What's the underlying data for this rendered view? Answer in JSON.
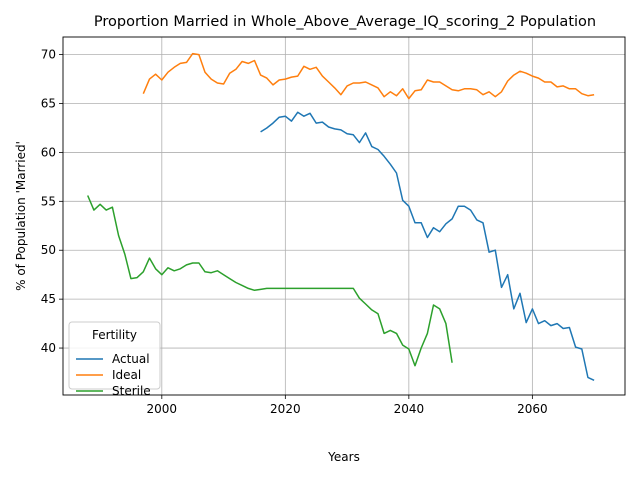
{
  "chart_data": {
    "type": "line",
    "title": "Proportion Married in Whole_Above_Average_IQ_scoring_2 Population",
    "xlabel": "Years",
    "ylabel": "% of Population 'Married'",
    "xlim": [
      1984,
      2075
    ],
    "ylim": [
      35.2,
      71.8
    ],
    "xticks": [
      2000,
      2020,
      2040,
      2060
    ],
    "yticks": [
      40,
      45,
      50,
      55,
      60,
      65,
      70
    ],
    "grid": true,
    "legend": {
      "title": "Fertility",
      "position": "lower-left"
    },
    "series": [
      {
        "name": "Actual",
        "color": "#1f77b4",
        "x": [
          2016,
          2017,
          2018,
          2019,
          2020,
          2021,
          2022,
          2023,
          2024,
          2025,
          2026,
          2027,
          2028,
          2029,
          2030,
          2031,
          2032,
          2033,
          2034,
          2035,
          2036,
          2037,
          2038,
          2039,
          2040,
          2041,
          2042,
          2043,
          2044,
          2045,
          2046,
          2047,
          2048,
          2049,
          2050,
          2051,
          2052,
          2053,
          2054,
          2055,
          2056,
          2057,
          2058,
          2059,
          2060,
          2061,
          2062,
          2063,
          2064,
          2065,
          2066,
          2067,
          2068,
          2069,
          2070
        ],
        "y": [
          62.1,
          62.5,
          63.0,
          63.6,
          63.7,
          63.2,
          64.1,
          63.7,
          64.0,
          63.0,
          63.1,
          62.6,
          62.4,
          62.3,
          61.9,
          61.8,
          61.0,
          62.0,
          60.6,
          60.3,
          59.6,
          58.8,
          57.9,
          55.1,
          54.5,
          52.8,
          52.8,
          51.3,
          52.3,
          51.9,
          52.7,
          53.2,
          54.5,
          54.5,
          54.1,
          53.1,
          52.8,
          49.8,
          50.0,
          46.2,
          47.5,
          44.0,
          45.6,
          42.6,
          44.0,
          42.5,
          42.8,
          42.3,
          42.5,
          42.0,
          42.1,
          40.1,
          39.9,
          37.0,
          36.7
        ]
      },
      {
        "name": "Ideal",
        "color": "#ff7f0e",
        "x": [
          1997,
          1998,
          1999,
          2000,
          2001,
          2002,
          2003,
          2004,
          2005,
          2006,
          2007,
          2008,
          2009,
          2010,
          2011,
          2012,
          2013,
          2014,
          2015,
          2016,
          2017,
          2018,
          2019,
          2020,
          2021,
          2022,
          2023,
          2024,
          2025,
          2026,
          2027,
          2028,
          2029,
          2030,
          2031,
          2032,
          2033,
          2034,
          2035,
          2036,
          2037,
          2038,
          2039,
          2040,
          2041,
          2042,
          2043,
          2044,
          2045,
          2046,
          2047,
          2048,
          2049,
          2050,
          2051,
          2052,
          2053,
          2054,
          2055,
          2056,
          2057,
          2058,
          2059,
          2060,
          2061,
          2062,
          2063,
          2064,
          2065,
          2066,
          2067,
          2068,
          2069,
          2070
        ],
        "y": [
          66.0,
          67.5,
          68.0,
          67.4,
          68.2,
          68.7,
          69.1,
          69.2,
          70.1,
          70.0,
          68.2,
          67.5,
          67.1,
          67.0,
          68.1,
          68.5,
          69.3,
          69.1,
          69.4,
          67.9,
          67.6,
          66.9,
          67.4,
          67.5,
          67.7,
          67.8,
          68.8,
          68.5,
          68.7,
          67.8,
          67.2,
          66.6,
          65.9,
          66.8,
          67.1,
          67.1,
          67.2,
          66.9,
          66.6,
          65.7,
          66.2,
          65.8,
          66.5,
          65.5,
          66.3,
          66.4,
          67.4,
          67.2,
          67.2,
          66.8,
          66.4,
          66.3,
          66.5,
          66.5,
          66.4,
          65.9,
          66.2,
          65.7,
          66.2,
          67.3,
          67.9,
          68.3,
          68.1,
          67.8,
          67.6,
          67.2,
          67.2,
          66.7,
          66.8,
          66.5,
          66.5,
          66.0,
          65.8,
          65.9
        ]
      },
      {
        "name": "Sterile",
        "color": "#2ca02c",
        "x": [
          1988,
          1989,
          1990,
          1991,
          1992,
          1993,
          1994,
          1995,
          1996,
          1997,
          1998,
          1999,
          2000,
          2001,
          2002,
          2003,
          2004,
          2005,
          2006,
          2007,
          2008,
          2009,
          2010,
          2011,
          2012,
          2013,
          2014,
          2015,
          2016,
          2017,
          2018,
          2019,
          2020,
          2021,
          2022,
          2023,
          2024,
          2025,
          2026,
          2027,
          2028,
          2029,
          2030,
          2031,
          2032,
          2033,
          2034,
          2035,
          2036,
          2037,
          2038,
          2039,
          2040,
          2041,
          2042,
          2043,
          2044,
          2045,
          2046,
          2047
        ],
        "y": [
          55.6,
          54.1,
          54.7,
          54.1,
          54.4,
          51.5,
          49.6,
          47.1,
          47.2,
          47.8,
          49.2,
          48.1,
          47.5,
          48.2,
          47.9,
          48.1,
          48.5,
          48.7,
          48.7,
          47.8,
          47.7,
          47.9,
          47.5,
          47.1,
          46.7,
          46.4,
          46.1,
          45.9,
          46.0,
          46.1,
          46.1,
          46.1,
          46.1,
          46.1,
          46.1,
          46.1,
          46.1,
          46.1,
          46.1,
          46.1,
          46.1,
          46.1,
          46.1,
          46.1,
          45.1,
          44.5,
          43.9,
          43.5,
          41.5,
          41.8,
          41.5,
          40.3,
          39.9,
          38.2,
          40.0,
          41.5,
          44.4,
          44.0,
          42.5,
          38.5
        ]
      }
    ]
  }
}
